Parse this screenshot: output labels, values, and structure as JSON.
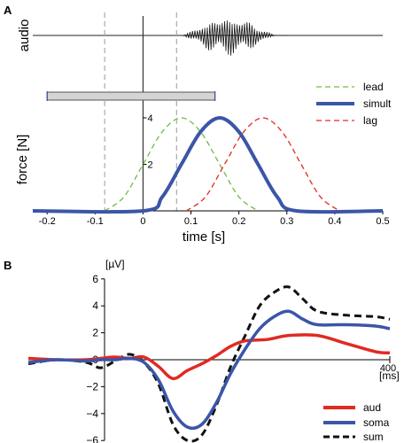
{
  "panels": {
    "a": "A",
    "b": "B"
  },
  "chart_data": [
    {
      "type": "line",
      "panel": "A",
      "ylabel_top": "audio",
      "ylabel": "force [N]",
      "xlabel": "time [s]",
      "xlim": [
        -0.23,
        0.5
      ],
      "ylim": [
        0,
        4
      ],
      "xticks": [
        "-0.2",
        "-0.1",
        "0",
        "0.1",
        "0.2",
        "0.3",
        "0.4",
        "0.5"
      ],
      "yticks": [
        "2",
        "4"
      ],
      "dashed_markers_x": [
        -0.08,
        0.07
      ],
      "gray_bar_x": [
        -0.2,
        0.15
      ],
      "legend_position": "top-right",
      "series": [
        {
          "name": "lead",
          "color": "#6abf3f",
          "style": "dashed",
          "x": [
            -0.08,
            -0.04,
            0.0,
            0.04,
            0.08,
            0.12,
            0.16,
            0.2,
            0.24
          ],
          "y": [
            0,
            0.6,
            2.0,
            3.4,
            4.0,
            3.4,
            2.0,
            0.6,
            0
          ]
        },
        {
          "name": "simult",
          "color": "#3b55a8",
          "style": "solid",
          "x": [
            -0.23,
            0.0,
            0.04,
            0.08,
            0.12,
            0.16,
            0.2,
            0.24,
            0.28,
            0.32,
            0.5
          ],
          "y": [
            0,
            0,
            0.6,
            2.0,
            3.4,
            4.0,
            3.4,
            2.0,
            0.6,
            0,
            0
          ]
        },
        {
          "name": "lag",
          "color": "#e02a22",
          "style": "dashed",
          "x": [
            0.09,
            0.13,
            0.17,
            0.21,
            0.25,
            0.29,
            0.33,
            0.37,
            0.41
          ],
          "y": [
            0,
            0.6,
            2.0,
            3.4,
            4.0,
            3.4,
            2.0,
            0.6,
            0
          ]
        }
      ]
    },
    {
      "type": "line",
      "panel": "B",
      "y_unit": "[µV]",
      "x_unit": "[ms]",
      "xlim": [
        -100,
        400
      ],
      "ylim": [
        -6,
        6
      ],
      "xticks": [
        "400"
      ],
      "yticks": [
        "6",
        "4",
        "2",
        "0",
        "-2",
        "-4",
        "-6"
      ],
      "legend_position": "bottom-right",
      "series": [
        {
          "name": "aud",
          "color": "#e02a22",
          "style": "solid",
          "x": [
            -100,
            -60,
            -20,
            0,
            20,
            40,
            60,
            80,
            100,
            120,
            140,
            160,
            180,
            200,
            230,
            260,
            300,
            340,
            380,
            400
          ],
          "y": [
            0.1,
            0.0,
            0.0,
            0.1,
            0.2,
            0.1,
            0.2,
            -0.5,
            -1.4,
            -0.8,
            -0.3,
            0.3,
            1.0,
            1.4,
            1.5,
            1.8,
            1.8,
            1.2,
            0.6,
            0.5
          ]
        },
        {
          "name": "soma",
          "color": "#3b55a8",
          "style": "solid",
          "x": [
            -100,
            -60,
            -20,
            0,
            20,
            40,
            60,
            80,
            100,
            120,
            140,
            160,
            180,
            200,
            220,
            240,
            260,
            280,
            300,
            340,
            380,
            400
          ],
          "y": [
            -0.2,
            0.0,
            -0.1,
            0.0,
            0.0,
            0.1,
            -0.2,
            -1.5,
            -3.8,
            -5.0,
            -4.8,
            -3.2,
            -1.0,
            0.8,
            2.3,
            3.2,
            3.6,
            3.0,
            2.6,
            2.6,
            2.5,
            2.3
          ]
        },
        {
          "name": "sum",
          "color": "#111111",
          "style": "dashed",
          "x": [
            -100,
            -60,
            -20,
            0,
            20,
            40,
            60,
            80,
            100,
            120,
            140,
            160,
            180,
            200,
            220,
            240,
            260,
            280,
            300,
            340,
            380,
            400
          ],
          "y": [
            -0.3,
            0.0,
            -0.2,
            -0.6,
            -0.1,
            0.4,
            -0.2,
            -1.8,
            -4.8,
            -6.0,
            -5.6,
            -3.4,
            -0.5,
            1.8,
            4.0,
            5.0,
            5.4,
            4.5,
            3.6,
            3.3,
            3.2,
            3.0
          ]
        }
      ]
    }
  ]
}
